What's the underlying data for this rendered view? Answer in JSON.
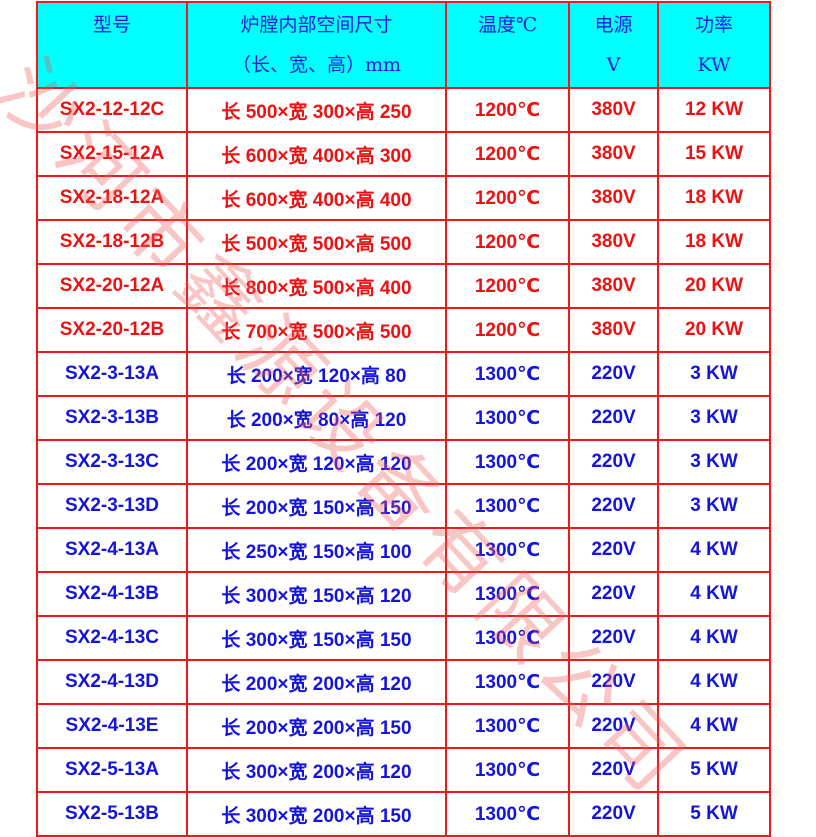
{
  "header": {
    "model": "型号",
    "size_line1": "炉膛内部空间尺寸",
    "size_line2": "（长、宽、高）mm",
    "temp": "温度℃",
    "power_line1": "电源",
    "power_line2": "V",
    "kw_line1": "功率",
    "kw_line2": "KW"
  },
  "colors": {
    "header_bg": "#00ffff",
    "border": "#f01818",
    "red_text": "#ee1111",
    "blue_text": "#1414dd"
  },
  "watermark": "沙河市鑫源设备有限公司",
  "rows": [
    {
      "model": "SX2-12-12C",
      "size": "长 500×宽 300×高 250",
      "temp": "1200℃",
      "voltage": "380V",
      "power": "12 KW",
      "color": "red"
    },
    {
      "model": "SX2-15-12A",
      "size": "长 600×宽 400×高 300",
      "temp": "1200℃",
      "voltage": "380V",
      "power": "15 KW",
      "color": "red"
    },
    {
      "model": "SX2-18-12A",
      "size": "长 600×宽 400×高 400",
      "temp": "1200℃",
      "voltage": "380V",
      "power": "18 KW",
      "color": "red"
    },
    {
      "model": "SX2-18-12B",
      "size": "长 500×宽 500×高 500",
      "temp": "1200℃",
      "voltage": "380V",
      "power": "18 KW",
      "color": "red"
    },
    {
      "model": "SX2-20-12A",
      "size": "长 800×宽 500×高 400",
      "temp": "1200℃",
      "voltage": "380V",
      "power": "20 KW",
      "color": "red"
    },
    {
      "model": "SX2-20-12B",
      "size": "长 700×宽 500×高 500",
      "temp": "1200℃",
      "voltage": "380V",
      "power": "20 KW",
      "color": "red"
    },
    {
      "model": "SX2-3-13A",
      "size": "长 200×宽 120×高 80",
      "temp": "1300℃",
      "voltage": "220V",
      "power": "3 KW",
      "color": "blue"
    },
    {
      "model": "SX2-3-13B",
      "size": "长 200×宽 80×高 120",
      "temp": "1300℃",
      "voltage": "220V",
      "power": "3 KW",
      "color": "blue"
    },
    {
      "model": "SX2-3-13C",
      "size": "长 200×宽 120×高 120",
      "temp": "1300℃",
      "voltage": "220V",
      "power": "3 KW",
      "color": "blue"
    },
    {
      "model": "SX2-3-13D",
      "size": "长 200×宽 150×高 150",
      "temp": "1300℃",
      "voltage": "220V",
      "power": "3 KW",
      "color": "blue"
    },
    {
      "model": "SX2-4-13A",
      "size": "长 250×宽 150×高 100",
      "temp": "1300℃",
      "voltage": "220V",
      "power": "4 KW",
      "color": "blue"
    },
    {
      "model": "SX2-4-13B",
      "size": "长 300×宽 150×高 120",
      "temp": "1300℃",
      "voltage": "220V",
      "power": "4 KW",
      "color": "blue"
    },
    {
      "model": "SX2-4-13C",
      "size": "长 300×宽 150×高 150",
      "temp": "1300℃",
      "voltage": "220V",
      "power": "4 KW",
      "color": "blue"
    },
    {
      "model": "SX2-4-13D",
      "size": "长 200×宽 200×高 120",
      "temp": "1300℃",
      "voltage": "220V",
      "power": "4 KW",
      "color": "blue"
    },
    {
      "model": "SX2-4-13E",
      "size": "长 200×宽 200×高 150",
      "temp": "1300℃",
      "voltage": "220V",
      "power": "4 KW",
      "color": "blue"
    },
    {
      "model": "SX2-5-13A",
      "size": "长 300×宽 200×高 120",
      "temp": "1300℃",
      "voltage": "220V",
      "power": "5 KW",
      "color": "blue"
    },
    {
      "model": "SX2-5-13B",
      "size": "长 300×宽 200×高 150",
      "temp": "1300℃",
      "voltage": "220V",
      "power": "5 KW",
      "color": "blue"
    }
  ]
}
